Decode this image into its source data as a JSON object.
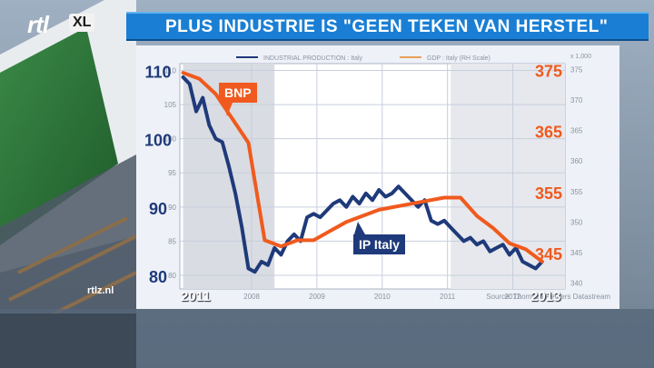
{
  "broadcaster": {
    "logo_text": "rtl",
    "logo_badge": "XL",
    "site": "rtlz.nl"
  },
  "headline": "PLUS INDUSTRIE IS \"GEEN TEKEN VAN HERSTEL\"",
  "callouts": {
    "bnp": "BNP",
    "ip": "IP Italy"
  },
  "overlay_years": {
    "start": "2011",
    "end": "2013"
  },
  "colors": {
    "industrial_production": "#1f3a7a",
    "gdp": "#f05a1e",
    "headline_bg": "#1a7fd4",
    "panel_bg": "#eef1f7"
  },
  "chart_data": {
    "type": "line",
    "legend": [
      "INDUSTRIAL PRODUCTION : Italy",
      "GDP : Italy (RH Scale)"
    ],
    "legend_position": "top",
    "source": "Source: Thomson Reuters Datastream",
    "right_axis_unit": "x 1,000",
    "grid": true,
    "x_ticks": [
      "2008",
      "2009",
      "2010",
      "2011",
      "2012"
    ],
    "xlim": [
      2007.4,
      2013.3
    ],
    "y_left": {
      "range": [
        78,
        111
      ],
      "ticks": [
        "80",
        "85",
        "90",
        "95",
        "100",
        "105",
        "110"
      ],
      "big_ticks": [
        "80",
        "90",
        "100",
        "110"
      ]
    },
    "y_right": {
      "range": [
        339,
        376
      ],
      "ticks": [
        "340",
        "345",
        "350",
        "355",
        "360",
        "365",
        "370",
        "375"
      ],
      "big_ticks": [
        "345",
        "355",
        "365",
        "375"
      ]
    },
    "series": [
      {
        "name": "INDUSTRIAL PRODUCTION : Italy",
        "axis": "left",
        "x": [
          2007.45,
          2007.55,
          2007.65,
          2007.75,
          2007.85,
          2007.95,
          2008.05,
          2008.15,
          2008.25,
          2008.35,
          2008.45,
          2008.55,
          2008.65,
          2008.75,
          2008.85,
          2008.95,
          2009.05,
          2009.15,
          2009.25,
          2009.35,
          2009.45,
          2009.55,
          2009.65,
          2009.75,
          2009.85,
          2009.95,
          2010.05,
          2010.15,
          2010.25,
          2010.35,
          2010.45,
          2010.55,
          2010.65,
          2010.75,
          2010.85,
          2010.95,
          2011.05,
          2011.15,
          2011.25,
          2011.35,
          2011.45,
          2011.55,
          2011.65,
          2011.75,
          2011.85,
          2011.95,
          2012.05,
          2012.15,
          2012.25,
          2012.35,
          2012.45,
          2012.55,
          2012.65,
          2012.75,
          2012.85,
          2012.95
        ],
        "values": [
          109.0,
          108.0,
          104.0,
          106.0,
          102.0,
          100.0,
          99.5,
          96.0,
          92.0,
          87.0,
          81.0,
          80.5,
          82.0,
          81.5,
          84.0,
          83.0,
          85.0,
          86.0,
          85.0,
          88.5,
          89.0,
          88.5,
          89.5,
          90.5,
          91.0,
          90.0,
          91.5,
          90.5,
          92.0,
          91.0,
          92.5,
          91.5,
          92.0,
          93.0,
          92.0,
          91.0,
          90.0,
          91.0,
          88.0,
          87.5,
          88.0,
          87.0,
          86.0,
          85.0,
          85.5,
          84.5,
          85.0,
          83.5,
          84.0,
          84.5,
          83.0,
          84.0,
          82.0,
          81.5,
          81.0,
          82.0
        ]
      },
      {
        "name": "GDP : Italy (RH Scale)",
        "axis": "right",
        "x": [
          2007.45,
          2007.7,
          2007.95,
          2008.2,
          2008.45,
          2008.7,
          2008.95,
          2009.2,
          2009.45,
          2009.7,
          2009.95,
          2010.2,
          2010.45,
          2010.7,
          2010.95,
          2011.2,
          2011.45,
          2011.7,
          2011.95,
          2012.2,
          2012.45,
          2012.7,
          2012.95
        ],
        "values": [
          374.5,
          373.5,
          371.0,
          367.0,
          363.0,
          347.0,
          346.0,
          347.0,
          347.0,
          348.5,
          350.0,
          351.0,
          352.0,
          352.5,
          353.0,
          353.5,
          354.0,
          354.0,
          351.0,
          349.0,
          346.5,
          345.5,
          343.5
        ]
      }
    ]
  }
}
